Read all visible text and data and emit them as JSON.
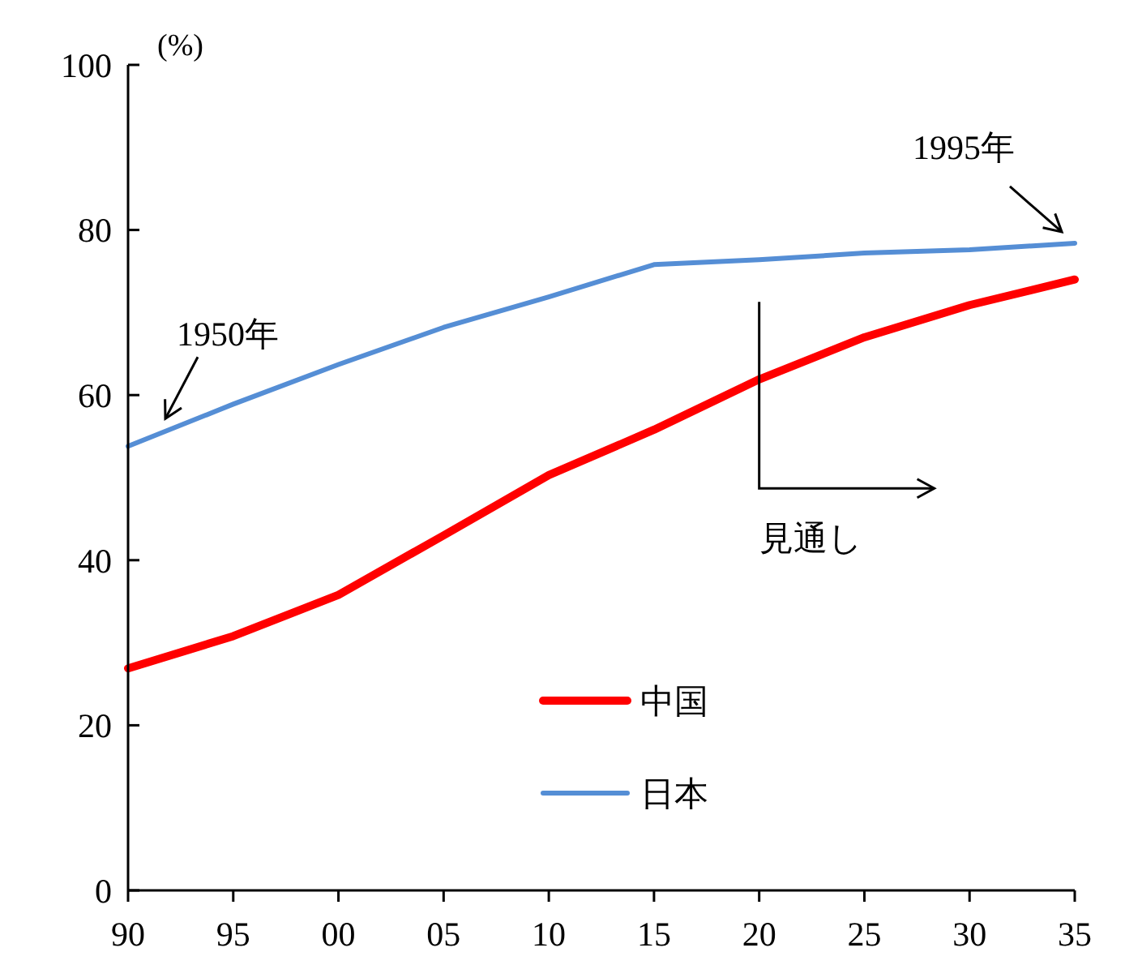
{
  "chart_data": {
    "type": "line",
    "ylabel": "(%)",
    "categories": [
      "90",
      "95",
      "00",
      "05",
      "10",
      "15",
      "20",
      "25",
      "30",
      "35"
    ],
    "series": [
      {
        "name": "中国",
        "color": "#ff0000",
        "values": [
          26.9,
          30.8,
          35.8,
          43,
          50.3,
          55.8,
          61.9,
          67,
          70.9,
          74
        ]
      },
      {
        "name": "日本",
        "color": "#558ed5",
        "values": [
          53.8,
          58.9,
          63.7,
          68.2,
          71.9,
          75.8,
          76.4,
          77.2,
          77.6,
          78.4
        ]
      }
    ],
    "ylim": [
      0,
      100
    ],
    "yticks": [
      0,
      20,
      40,
      60,
      80,
      100
    ],
    "grid": false,
    "legend": "bottom",
    "marker": "none",
    "line_style": "solid",
    "annotations": [
      "1950年",
      "1995年",
      "見通し"
    ]
  }
}
